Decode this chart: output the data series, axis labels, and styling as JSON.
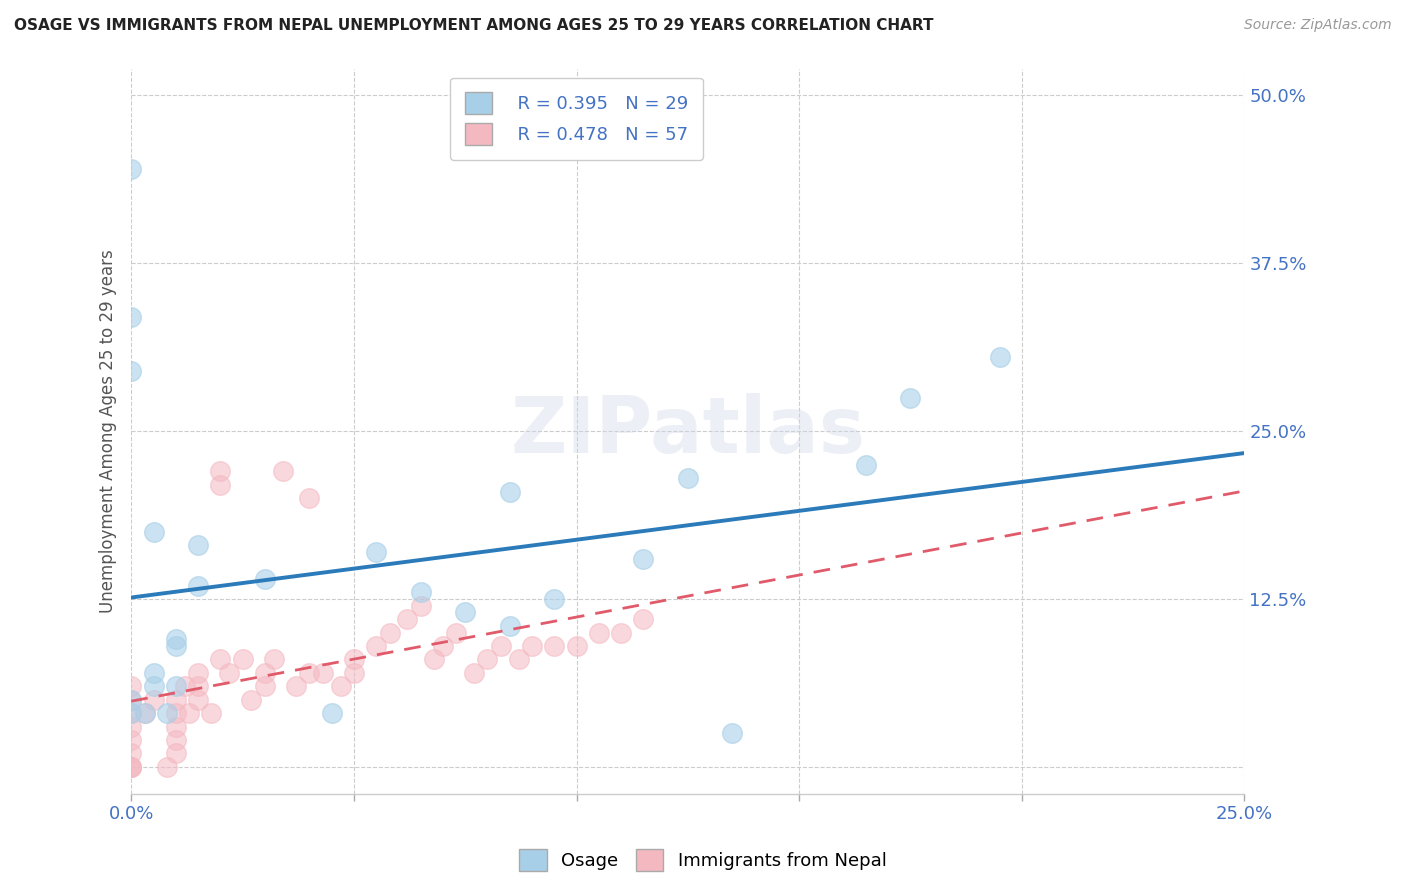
{
  "title": "OSAGE VS IMMIGRANTS FROM NEPAL UNEMPLOYMENT AMONG AGES 25 TO 29 YEARS CORRELATION CHART",
  "source": "Source: ZipAtlas.com",
  "ylabel": "Unemployment Among Ages 25 to 29 years",
  "xlim": [
    0.0,
    0.25
  ],
  "ylim": [
    -0.02,
    0.52
  ],
  "xticks": [
    0.0,
    0.05,
    0.1,
    0.15,
    0.2,
    0.25
  ],
  "xtick_labels": [
    "0.0%",
    "",
    "",
    "",
    "",
    "25.0%"
  ],
  "yticks": [
    0.0,
    0.125,
    0.25,
    0.375,
    0.5
  ],
  "ytick_labels": [
    "",
    "12.5%",
    "25.0%",
    "37.5%",
    "50.0%"
  ],
  "background_color": "#ffffff",
  "watermark": "ZIPatlas",
  "legend_R1": "R = 0.395",
  "legend_N1": "N = 29",
  "legend_R2": "R = 0.478",
  "legend_N2": "N = 57",
  "blue_color": "#a8cfe8",
  "pink_color": "#f4b8c1",
  "blue_line_color": "#2b7bba",
  "pink_line_color": "#e05a6a",
  "tick_color": "#4472c4",
  "osage_x": [
    0.005,
    0.0,
    0.0,
    0.0,
    0.015,
    0.01,
    0.015,
    0.005,
    0.01,
    0.005,
    0.01,
    0.003,
    0.0,
    0.0,
    0.008,
    0.03,
    0.055,
    0.065,
    0.115,
    0.075,
    0.045,
    0.085,
    0.175,
    0.125,
    0.195,
    0.165,
    0.095,
    0.085,
    0.135
  ],
  "osage_y": [
    0.175,
    0.445,
    0.335,
    0.295,
    0.165,
    0.095,
    0.135,
    0.06,
    0.09,
    0.07,
    0.06,
    0.04,
    0.04,
    0.05,
    0.04,
    0.14,
    0.16,
    0.13,
    0.155,
    0.115,
    0.04,
    0.205,
    0.275,
    0.215,
    0.305,
    0.225,
    0.125,
    0.105,
    0.025
  ],
  "nepal_x": [
    0.0,
    0.0,
    0.0,
    0.0,
    0.0,
    0.0,
    0.0,
    0.0,
    0.0,
    0.003,
    0.005,
    0.008,
    0.01,
    0.01,
    0.01,
    0.01,
    0.01,
    0.012,
    0.013,
    0.015,
    0.015,
    0.015,
    0.018,
    0.02,
    0.02,
    0.02,
    0.022,
    0.025,
    0.027,
    0.03,
    0.03,
    0.032,
    0.034,
    0.037,
    0.04,
    0.04,
    0.043,
    0.047,
    0.05,
    0.05,
    0.055,
    0.058,
    0.062,
    0.065,
    0.068,
    0.07,
    0.073,
    0.077,
    0.08,
    0.083,
    0.087,
    0.09,
    0.095,
    0.1,
    0.105,
    0.11,
    0.115
  ],
  "nepal_y": [
    0.0,
    0.0,
    0.0,
    0.01,
    0.02,
    0.03,
    0.04,
    0.05,
    0.06,
    0.04,
    0.05,
    0.0,
    0.01,
    0.02,
    0.03,
    0.04,
    0.05,
    0.06,
    0.04,
    0.05,
    0.06,
    0.07,
    0.04,
    0.08,
    0.21,
    0.22,
    0.07,
    0.08,
    0.05,
    0.06,
    0.07,
    0.08,
    0.22,
    0.06,
    0.07,
    0.2,
    0.07,
    0.06,
    0.07,
    0.08,
    0.09,
    0.1,
    0.11,
    0.12,
    0.08,
    0.09,
    0.1,
    0.07,
    0.08,
    0.09,
    0.08,
    0.09,
    0.09,
    0.09,
    0.1,
    0.1,
    0.11
  ]
}
